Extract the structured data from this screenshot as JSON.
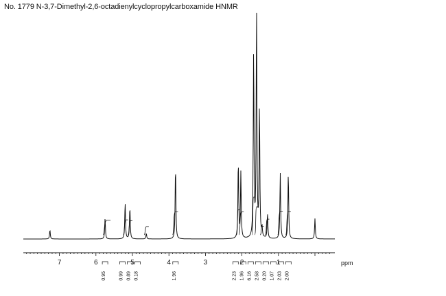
{
  "title": "No. 1779 N-3,7-Dimethyl-2,6-octadienylcyclopropylcarboxamide HNMR",
  "chart_data": {
    "type": "line",
    "title": "No. 1779 N-3,7-Dimethyl-2,6-octadienylcyclopropylcarboxamide HNMR",
    "xlabel": "ppm",
    "ylabel": "",
    "xlim": [
      8.0,
      -0.4
    ],
    "x_reversed": true,
    "grid": false,
    "ticks": [
      7,
      6,
      5,
      4,
      3,
      2,
      1
    ],
    "tick_labels": [
      "7",
      "6",
      "5",
      "4",
      "3",
      "2",
      "1"
    ],
    "peaks": [
      {
        "ppm": 7.26,
        "height": 0.04
      },
      {
        "ppm": 5.75,
        "height": 0.09
      },
      {
        "ppm": 5.2,
        "height": 0.16
      },
      {
        "ppm": 5.07,
        "height": 0.14
      },
      {
        "ppm": 4.62,
        "height": 0.025
      },
      {
        "ppm": 3.82,
        "height": 0.32
      },
      {
        "ppm": 2.1,
        "height": 0.34
      },
      {
        "ppm": 2.03,
        "height": 0.29
      },
      {
        "ppm": 1.68,
        "height": 0.82
      },
      {
        "ppm": 1.6,
        "height": 1.0
      },
      {
        "ppm": 1.52,
        "height": 0.57
      },
      {
        "ppm": 1.45,
        "height": 0.04
      },
      {
        "ppm": 1.3,
        "height": 0.11
      },
      {
        "ppm": 0.95,
        "height": 0.29
      },
      {
        "ppm": 0.73,
        "height": 0.29
      },
      {
        "ppm": 0.0,
        "height": 0.09
      }
    ],
    "integrals": [
      {
        "ppm": 5.75,
        "value": "0.95",
        "curve": [
          5.8,
          5.6
        ]
      },
      {
        "ppm": 5.2,
        "value": "0.99",
        "curve": [
          5.25,
          5.12
        ]
      },
      {
        "ppm": 5.07,
        "value": "0.89",
        "curve": [
          5.12,
          5.0
        ]
      },
      {
        "ppm": 4.62,
        "value": "0.18",
        "curve": [
          4.68,
          4.55
        ]
      },
      {
        "ppm": 3.82,
        "value": "1.96",
        "curve": [
          3.9,
          3.75
        ]
      },
      {
        "ppm": 2.1,
        "value": "2.23",
        "curve": [
          2.15,
          2.05
        ]
      },
      {
        "ppm": 2.03,
        "value": "1.96",
        "curve": [
          2.08,
          1.95
        ]
      },
      {
        "ppm": 1.68,
        "value": "6.16",
        "curve": [
          1.73,
          1.63
        ]
      },
      {
        "ppm": 1.6,
        "value": "2.58",
        "curve": [
          1.65,
          1.55
        ]
      },
      {
        "ppm": 1.45,
        "value": "0.20",
        "curve": [
          1.5,
          1.4
        ]
      },
      {
        "ppm": 1.3,
        "value": "1.07",
        "curve": [
          1.36,
          1.25
        ]
      },
      {
        "ppm": 0.95,
        "value": "2.03",
        "curve": [
          1.02,
          0.88
        ]
      },
      {
        "ppm": 0.73,
        "value": "2.00",
        "curve": [
          0.8,
          0.66
        ]
      }
    ]
  }
}
